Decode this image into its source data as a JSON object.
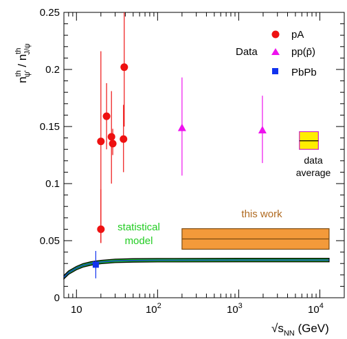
{
  "chart_data": {
    "type": "scatter",
    "x_scale": "log",
    "xlim": [
      7,
      20000
    ],
    "ylim": [
      0,
      0.25
    ],
    "xlabel": "√s_NN (GeV)",
    "ylabel": "n^th_ψ' / n^th_J/ψ",
    "x_ticks": [
      {
        "value": 10,
        "label": "10"
      },
      {
        "value": 100,
        "label": "10",
        "exp": "2"
      },
      {
        "value": 1000,
        "label": "10",
        "exp": "3"
      },
      {
        "value": 10000,
        "label": "10",
        "exp": "4"
      }
    ],
    "y_ticks": [
      {
        "value": 0,
        "label": "0"
      },
      {
        "value": 0.05,
        "label": "0.05"
      },
      {
        "value": 0.1,
        "label": "0.1"
      },
      {
        "value": 0.15,
        "label": "0.15"
      },
      {
        "value": 0.2,
        "label": "0.2"
      },
      {
        "value": 0.25,
        "label": "0.25"
      }
    ],
    "legend_title": "Data",
    "series": [
      {
        "name": "pA",
        "marker": "circle",
        "color": "#ee1111",
        "points": [
          {
            "x": 20,
            "y": 0.06,
            "ylo": 0.048,
            "yhi": 0.095
          },
          {
            "x": 20,
            "y": 0.137,
            "ylo": 0.048,
            "yhi": 0.216
          },
          {
            "x": 23.5,
            "y": 0.159,
            "ylo": 0.13,
            "yhi": 0.188
          },
          {
            "x": 27,
            "y": 0.141,
            "ylo": 0.1,
            "yhi": 0.181
          },
          {
            "x": 28,
            "y": 0.135,
            "ylo": 0.125,
            "yhi": 0.148
          },
          {
            "x": 38,
            "y": 0.139,
            "ylo": 0.11,
            "yhi": 0.169
          },
          {
            "x": 38.8,
            "y": 0.202,
            "ylo": 0.15,
            "yhi": 0.25
          }
        ]
      },
      {
        "name": "pp(p̄)",
        "marker": "triangle",
        "color": "#ee11ee",
        "points": [
          {
            "x": 200,
            "y": 0.149,
            "ylo": 0.107,
            "yhi": 0.193
          },
          {
            "x": 1960,
            "y": 0.147,
            "ylo": 0.118,
            "yhi": 0.177
          }
        ]
      },
      {
        "name": "PbPb",
        "marker": "square",
        "color": "#1133ee",
        "points": [
          {
            "x": 17.3,
            "y": 0.029,
            "ylo": 0.017,
            "yhi": 0.041
          }
        ]
      }
    ],
    "statistical_model": {
      "label_line1": "statistical",
      "label_line2": "model",
      "color": "#22cc22",
      "x": [
        7,
        8,
        10,
        12,
        15,
        20,
        30,
        50,
        100,
        1000,
        13000
      ],
      "y_low": [
        0.0165,
        0.0205,
        0.0245,
        0.0268,
        0.0285,
        0.0298,
        0.0308,
        0.0312,
        0.0314,
        0.0315,
        0.0315
      ],
      "y_high": [
        0.0195,
        0.0235,
        0.0275,
        0.0298,
        0.0315,
        0.0328,
        0.0338,
        0.0342,
        0.0344,
        0.0345,
        0.0345
      ]
    },
    "this_work": {
      "label": "this work",
      "color": "#f39a3a",
      "x_range": [
        200,
        13000
      ],
      "y_low": 0.0425,
      "y_high": 0.0605,
      "y_central": 0.0515
    },
    "data_average": {
      "label_line1": "data",
      "label_line2": "average",
      "color": "#ffee00",
      "x_range": [
        5600,
        9600
      ],
      "y_low": 0.13,
      "y_high": 0.1455,
      "y_central": 0.1375
    }
  }
}
